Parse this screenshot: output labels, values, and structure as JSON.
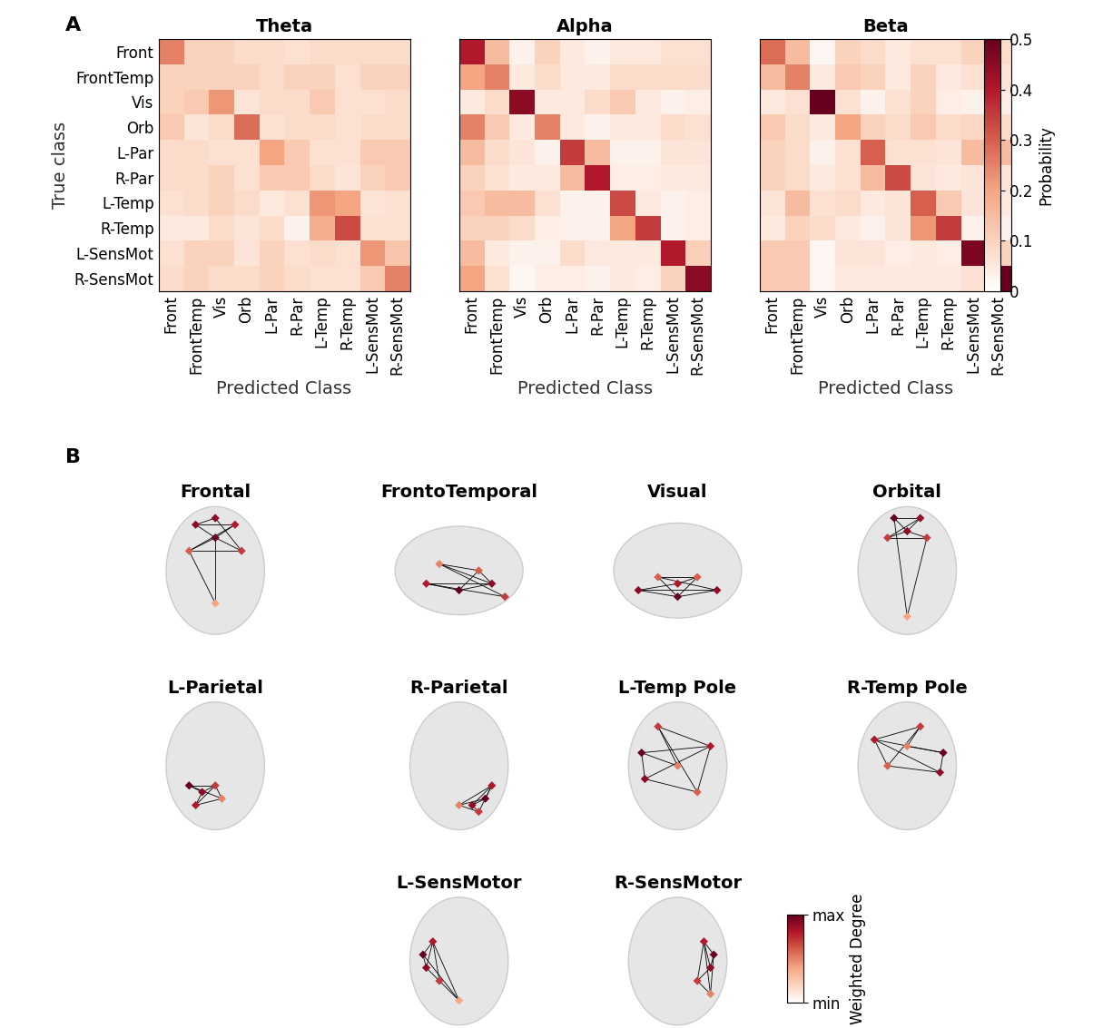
{
  "panel_labels": [
    "A",
    "B"
  ],
  "chart_data": [
    {
      "type": "heatmap",
      "title": "Theta",
      "xlabel": "Predicted Class",
      "ylabel": "True class",
      "tick_labels": true,
      "categories": [
        "Front",
        "FrontTemp",
        "Vis",
        "Orb",
        "L-Par",
        "R-Par",
        "L-Temp",
        "R-Temp",
        "L-SensMot",
        "R-SensMot"
      ],
      "cells": [
        [
          0.25,
          0.1,
          0.1,
          0.08,
          0.08,
          0.07,
          0.08,
          0.08,
          0.08,
          0.08
        ],
        [
          0.1,
          0.1,
          0.1,
          0.1,
          0.08,
          0.1,
          0.1,
          0.07,
          0.1,
          0.1
        ],
        [
          0.1,
          0.12,
          0.22,
          0.06,
          0.08,
          0.08,
          0.12,
          0.07,
          0.07,
          0.08
        ],
        [
          0.12,
          0.06,
          0.08,
          0.28,
          0.07,
          0.08,
          0.08,
          0.07,
          0.08,
          0.08
        ],
        [
          0.08,
          0.08,
          0.07,
          0.07,
          0.2,
          0.12,
          0.07,
          0.07,
          0.12,
          0.12
        ],
        [
          0.08,
          0.08,
          0.1,
          0.07,
          0.12,
          0.12,
          0.08,
          0.06,
          0.1,
          0.12
        ],
        [
          0.07,
          0.08,
          0.1,
          0.08,
          0.05,
          0.07,
          0.22,
          0.2,
          0.06,
          0.07
        ],
        [
          0.05,
          0.05,
          0.08,
          0.06,
          0.08,
          0.03,
          0.18,
          0.33,
          0.07,
          0.07
        ],
        [
          0.07,
          0.1,
          0.1,
          0.06,
          0.1,
          0.07,
          0.08,
          0.07,
          0.22,
          0.13
        ],
        [
          0.08,
          0.1,
          0.08,
          0.08,
          0.1,
          0.08,
          0.07,
          0.07,
          0.12,
          0.25
        ]
      ]
    },
    {
      "type": "heatmap",
      "title": "Alpha",
      "xlabel": "Predicted Class",
      "tick_labels": "x",
      "categories": [
        "Front",
        "FrontTemp",
        "Vis",
        "Orb",
        "L-Par",
        "R-Par",
        "L-Temp",
        "R-Temp",
        "L-SensMot",
        "R-SensMot"
      ],
      "cells": [
        [
          0.4,
          0.15,
          0.03,
          0.1,
          0.05,
          0.03,
          0.05,
          0.05,
          0.07,
          0.07
        ],
        [
          0.2,
          0.25,
          0.05,
          0.08,
          0.05,
          0.05,
          0.08,
          0.08,
          0.08,
          0.08
        ],
        [
          0.05,
          0.08,
          0.45,
          0.05,
          0.05,
          0.08,
          0.12,
          0.05,
          0.03,
          0.04
        ],
        [
          0.25,
          0.12,
          0.05,
          0.25,
          0.05,
          0.03,
          0.05,
          0.05,
          0.08,
          0.07
        ],
        [
          0.15,
          0.08,
          0.06,
          0.03,
          0.35,
          0.15,
          0.03,
          0.03,
          0.06,
          0.06
        ],
        [
          0.1,
          0.07,
          0.05,
          0.05,
          0.15,
          0.4,
          0.04,
          0.04,
          0.05,
          0.05
        ],
        [
          0.12,
          0.15,
          0.15,
          0.07,
          0.03,
          0.03,
          0.33,
          0.05,
          0.03,
          0.04
        ],
        [
          0.1,
          0.1,
          0.08,
          0.04,
          0.03,
          0.03,
          0.2,
          0.35,
          0.03,
          0.04
        ],
        [
          0.15,
          0.05,
          0.03,
          0.03,
          0.08,
          0.05,
          0.05,
          0.05,
          0.4,
          0.11
        ],
        [
          0.2,
          0.07,
          0.02,
          0.04,
          0.04,
          0.03,
          0.05,
          0.04,
          0.1,
          0.45
        ]
      ]
    },
    {
      "type": "heatmap",
      "title": "Beta",
      "xlabel": "Predicted Class",
      "tick_labels": "x",
      "categories": [
        "Front",
        "FrontTemp",
        "Vis",
        "Orb",
        "L-Par",
        "R-Par",
        "L-Temp",
        "R-Temp",
        "L-SensMot",
        "R-SensMot"
      ],
      "cells": [
        [
          0.28,
          0.15,
          0.02,
          0.1,
          0.08,
          0.05,
          0.07,
          0.07,
          0.1,
          0.08
        ],
        [
          0.15,
          0.25,
          0.05,
          0.12,
          0.1,
          0.05,
          0.1,
          0.05,
          0.07,
          0.06
        ],
        [
          0.05,
          0.07,
          0.5,
          0.07,
          0.03,
          0.07,
          0.1,
          0.04,
          0.03,
          0.04
        ],
        [
          0.12,
          0.08,
          0.05,
          0.2,
          0.1,
          0.08,
          0.12,
          0.08,
          0.09,
          0.08
        ],
        [
          0.1,
          0.08,
          0.03,
          0.07,
          0.3,
          0.07,
          0.07,
          0.06,
          0.15,
          0.15
        ],
        [
          0.1,
          0.08,
          0.05,
          0.07,
          0.15,
          0.33,
          0.06,
          0.05,
          0.06,
          0.06
        ],
        [
          0.06,
          0.15,
          0.07,
          0.08,
          0.05,
          0.06,
          0.3,
          0.12,
          0.06,
          0.05
        ],
        [
          0.05,
          0.1,
          0.08,
          0.05,
          0.03,
          0.06,
          0.22,
          0.35,
          0.03,
          0.03
        ],
        [
          0.12,
          0.12,
          0.02,
          0.06,
          0.06,
          0.04,
          0.05,
          0.04,
          0.47,
          0.1
        ],
        [
          0.12,
          0.12,
          0.02,
          0.05,
          0.05,
          0.05,
          0.05,
          0.05,
          0.07,
          0.5
        ]
      ]
    }
  ],
  "colorbar": {
    "label": "Probability",
    "ylim": [
      0,
      0.5
    ],
    "yticks": [
      0,
      0.1,
      0.2,
      0.3,
      0.4,
      0.5
    ]
  },
  "networks": [
    {
      "title": "Frontal",
      "nodes": [
        [
          -0.3,
          0.7
        ],
        [
          0.3,
          0.7
        ],
        [
          0,
          0.5
        ],
        [
          -0.4,
          0.3
        ],
        [
          0.4,
          0.3
        ],
        [
          0,
          0.8
        ],
        [
          0,
          -0.5
        ]
      ],
      "degree": [
        0.9,
        0.8,
        1.0,
        0.6,
        0.7,
        0.9,
        0.4
      ],
      "edges": [
        [
          0,
          1
        ],
        [
          0,
          2
        ],
        [
          1,
          2
        ],
        [
          2,
          3
        ],
        [
          3,
          4
        ],
        [
          4,
          5
        ],
        [
          0,
          5
        ],
        [
          1,
          3
        ],
        [
          2,
          4
        ],
        [
          2,
          6
        ],
        [
          3,
          6
        ]
      ]
    },
    {
      "title": "FrontoTemporal",
      "nodes": [
        [
          -0.5,
          -0.2
        ],
        [
          0,
          -0.3
        ],
        [
          0.5,
          -0.2
        ],
        [
          0.3,
          0.0
        ],
        [
          -0.3,
          0.1
        ],
        [
          0.7,
          -0.4
        ]
      ],
      "degree": [
        0.8,
        1.0,
        0.9,
        0.6,
        0.5,
        0.7
      ],
      "edges": [
        [
          0,
          1
        ],
        [
          0,
          2
        ],
        [
          1,
          2
        ],
        [
          2,
          3
        ],
        [
          3,
          4
        ],
        [
          4,
          5
        ],
        [
          0,
          5
        ],
        [
          1,
          3
        ],
        [
          2,
          4
        ]
      ]
    },
    {
      "title": "Visual",
      "nodes": [
        [
          -0.6,
          -0.3
        ],
        [
          0.6,
          -0.3
        ],
        [
          0,
          -0.4
        ],
        [
          -0.3,
          -0.1
        ],
        [
          0.3,
          -0.1
        ],
        [
          0,
          -0.2
        ]
      ],
      "degree": [
        0.9,
        0.9,
        1.0,
        0.6,
        0.6,
        0.8
      ],
      "edges": [
        [
          0,
          1
        ],
        [
          0,
          2
        ],
        [
          1,
          2
        ],
        [
          2,
          3
        ],
        [
          3,
          4
        ],
        [
          4,
          5
        ],
        [
          0,
          5
        ],
        [
          1,
          3
        ],
        [
          2,
          4
        ]
      ]
    },
    {
      "title": "Orbital",
      "nodes": [
        [
          -0.2,
          0.8
        ],
        [
          0.2,
          0.8
        ],
        [
          0,
          0.6
        ],
        [
          -0.3,
          0.5
        ],
        [
          0.3,
          0.5
        ],
        [
          0,
          -0.7
        ]
      ],
      "degree": [
        1.0,
        0.9,
        0.9,
        0.7,
        0.7,
        0.4
      ],
      "edges": [
        [
          0,
          1
        ],
        [
          0,
          2
        ],
        [
          1,
          2
        ],
        [
          2,
          3
        ],
        [
          3,
          4
        ],
        [
          4,
          5
        ],
        [
          0,
          5
        ],
        [
          1,
          3
        ],
        [
          2,
          4
        ]
      ]
    },
    {
      "title": "L-Parietal",
      "nodes": [
        [
          -0.4,
          -0.3
        ],
        [
          -0.2,
          -0.4
        ],
        [
          0,
          -0.3
        ],
        [
          -0.3,
          -0.6
        ],
        [
          0.1,
          -0.5
        ]
      ],
      "degree": [
        1.0,
        0.9,
        0.7,
        0.8,
        0.5
      ],
      "edges": [
        [
          0,
          1
        ],
        [
          1,
          2
        ],
        [
          2,
          3
        ],
        [
          3,
          4
        ],
        [
          0,
          2
        ],
        [
          1,
          3
        ],
        [
          0,
          4
        ],
        [
          2,
          4
        ]
      ]
    },
    {
      "title": "R-Parietal",
      "nodes": [
        [
          0.4,
          -0.5
        ],
        [
          0.2,
          -0.6
        ],
        [
          0.5,
          -0.3
        ],
        [
          0.3,
          -0.7
        ],
        [
          0,
          -0.6
        ]
      ],
      "degree": [
        1.0,
        0.9,
        0.8,
        0.7,
        0.5
      ],
      "edges": [
        [
          0,
          1
        ],
        [
          1,
          2
        ],
        [
          2,
          3
        ],
        [
          3,
          4
        ],
        [
          0,
          2
        ],
        [
          1,
          3
        ],
        [
          0,
          4
        ],
        [
          2,
          4
        ]
      ]
    },
    {
      "title": "L-Temp Pole",
      "nodes": [
        [
          -0.55,
          0.2
        ],
        [
          -0.5,
          -0.2
        ],
        [
          0.5,
          0.3
        ],
        [
          0.3,
          -0.4
        ],
        [
          -0.3,
          0.6
        ],
        [
          0,
          0.0
        ]
      ],
      "degree": [
        1.0,
        0.9,
        0.8,
        0.6,
        0.7,
        0.5
      ],
      "edges": [
        [
          0,
          1
        ],
        [
          0,
          2
        ],
        [
          1,
          2
        ],
        [
          2,
          3
        ],
        [
          3,
          4
        ],
        [
          4,
          5
        ],
        [
          0,
          5
        ],
        [
          1,
          3
        ],
        [
          2,
          4
        ]
      ]
    },
    {
      "title": "R-Temp Pole",
      "nodes": [
        [
          0.55,
          0.2
        ],
        [
          0.5,
          -0.1
        ],
        [
          -0.5,
          0.4
        ],
        [
          -0.3,
          0.0
        ],
        [
          0.2,
          0.6
        ],
        [
          0,
          0.3
        ]
      ],
      "degree": [
        1.0,
        0.9,
        0.8,
        0.6,
        0.7,
        0.5
      ],
      "edges": [
        [
          0,
          1
        ],
        [
          0,
          2
        ],
        [
          1,
          2
        ],
        [
          2,
          3
        ],
        [
          3,
          4
        ],
        [
          4,
          5
        ],
        [
          0,
          5
        ],
        [
          1,
          3
        ],
        [
          2,
          4
        ]
      ]
    },
    {
      "title": "L-SensMotor",
      "nodes": [
        [
          -0.55,
          0.1
        ],
        [
          -0.5,
          -0.1
        ],
        [
          -0.4,
          0.3
        ],
        [
          -0.3,
          -0.3
        ],
        [
          0,
          -0.6
        ]
      ],
      "degree": [
        1.0,
        0.9,
        0.8,
        0.7,
        0.4
      ],
      "edges": [
        [
          0,
          1
        ],
        [
          1,
          2
        ],
        [
          2,
          3
        ],
        [
          3,
          4
        ],
        [
          0,
          2
        ],
        [
          1,
          3
        ],
        [
          0,
          4
        ],
        [
          2,
          4
        ]
      ]
    },
    {
      "title": "R-SensMotor",
      "nodes": [
        [
          0.55,
          0.1
        ],
        [
          0.5,
          -0.1
        ],
        [
          0.4,
          0.3
        ],
        [
          0.3,
          -0.3
        ],
        [
          0.5,
          -0.5
        ]
      ],
      "degree": [
        1.0,
        0.9,
        0.8,
        0.7,
        0.5
      ],
      "edges": [
        [
          0,
          1
        ],
        [
          1,
          2
        ],
        [
          2,
          3
        ],
        [
          3,
          4
        ],
        [
          0,
          2
        ],
        [
          1,
          3
        ],
        [
          0,
          4
        ],
        [
          2,
          4
        ]
      ]
    }
  ],
  "network_axes": {
    "xlim": [
      -1,
      1
    ],
    "ylim": [
      -1,
      1
    ],
    "tick_labels": false
  },
  "network_colorbar": {
    "label": "Weighted Degree",
    "ylim": [
      0,
      1
    ],
    "yticks": [
      {
        "value": 0,
        "label": "min"
      },
      {
        "value": 1,
        "label": "max"
      }
    ]
  }
}
